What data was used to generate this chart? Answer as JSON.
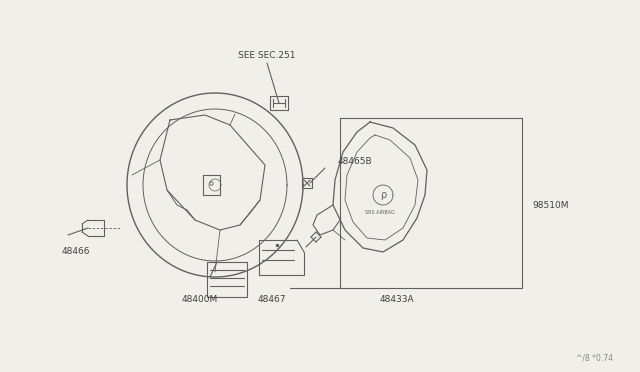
{
  "bg_color": "#f0efea",
  "line_color": "#606060",
  "text_color": "#404040",
  "watermark": "^/8 *0.74",
  "labels": {
    "see_sec": "SEE SEC.251",
    "48465B": "48465B",
    "48466": "48466",
    "48400M": "48400M",
    "48467": "48467",
    "48433A": "48433A",
    "98510M": "98510M"
  },
  "fig_width": 6.4,
  "fig_height": 3.72,
  "dpi": 100
}
